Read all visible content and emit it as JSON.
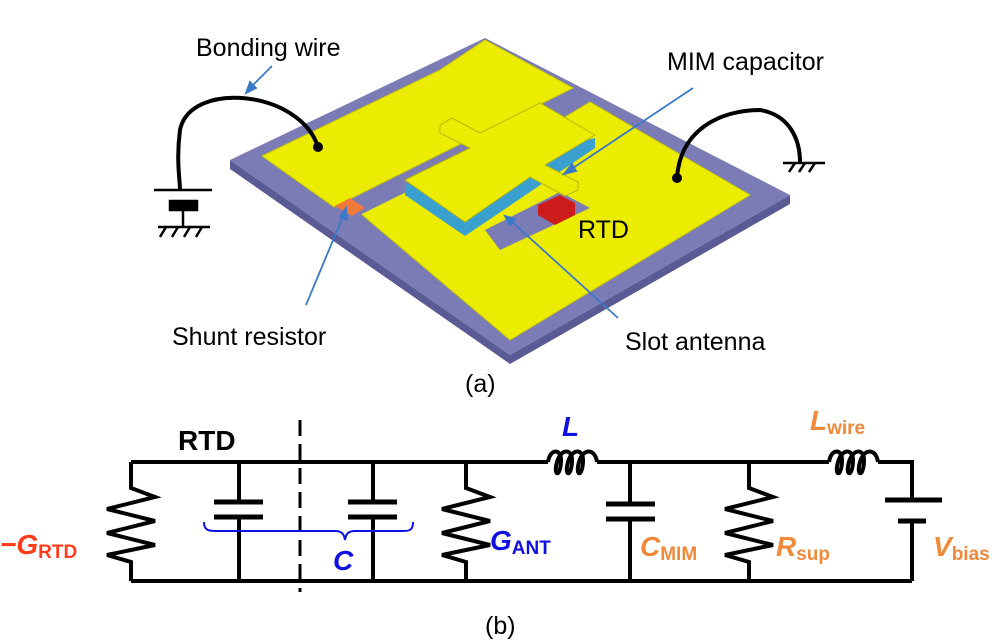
{
  "panel_a": {
    "caption": "(a)",
    "labels": {
      "bonding_wire": "Bonding wire",
      "mim_capacitor": "MIM capacitor",
      "rtd": "RTD",
      "shunt_resistor": "Shunt resistor",
      "slot_antenna": "Slot antenna"
    },
    "colors": {
      "substrate": "#7b7bb5",
      "metal": "#ecec00",
      "dielectric": "#3aa0d0",
      "rtd": "#cc1c1c",
      "resistor": "#f07a3a",
      "arrow": "#3a78c8"
    }
  },
  "panel_b": {
    "caption": "(b)",
    "labels": {
      "rtd": "RTD",
      "g_rtd_prefix": "−G",
      "g_rtd_sub": "RTD",
      "c": "C",
      "g_ant": "G",
      "g_ant_sub": "ANT",
      "l": "L",
      "l_wire": "L",
      "l_wire_sub": "wire",
      "c_mim": "C",
      "c_mim_sub": "MIM",
      "r_sup": "R",
      "r_sup_sub": "sup",
      "v_bias": "V",
      "v_bias_sub": "bias"
    },
    "colors": {
      "rtd_label": "#ff3b1a",
      "antenna_label": "#1010e0",
      "bias_label": "#f08a3a"
    }
  }
}
